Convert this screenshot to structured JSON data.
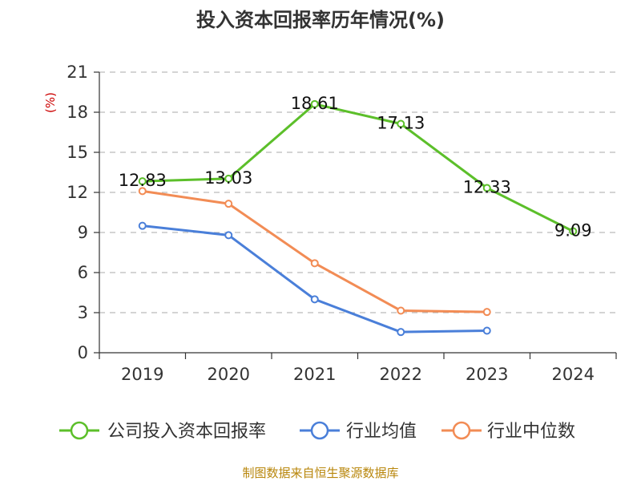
{
  "chart_data": {
    "type": "line",
    "title": "投入资本回报率历年情况(%)",
    "ylabel": "(%)",
    "xlabel": "",
    "categories": [
      "2019",
      "2020",
      "2021",
      "2022",
      "2023",
      "2024"
    ],
    "ylim": [
      0,
      21
    ],
    "yticks": [
      0,
      3,
      6,
      9,
      12,
      15,
      18,
      21
    ],
    "grid": true,
    "legend_position": "bottom",
    "series": [
      {
        "name": "公司投入资本回报率",
        "color": "#5cbf2a",
        "values": [
          12.83,
          13.03,
          18.61,
          17.13,
          12.33,
          9.09
        ],
        "labels": [
          "12.83",
          "13.03",
          "18.61",
          "17.13",
          "12.33",
          "9.09"
        ]
      },
      {
        "name": "行业均值",
        "color": "#4a7fd9",
        "values": [
          9.5,
          8.8,
          4.0,
          1.55,
          1.65,
          null
        ]
      },
      {
        "name": "行业中位数",
        "color": "#f28c55",
        "values": [
          12.1,
          11.15,
          6.7,
          3.15,
          3.05,
          null
        ]
      }
    ]
  },
  "source": "制图数据来自恒生聚源数据库"
}
